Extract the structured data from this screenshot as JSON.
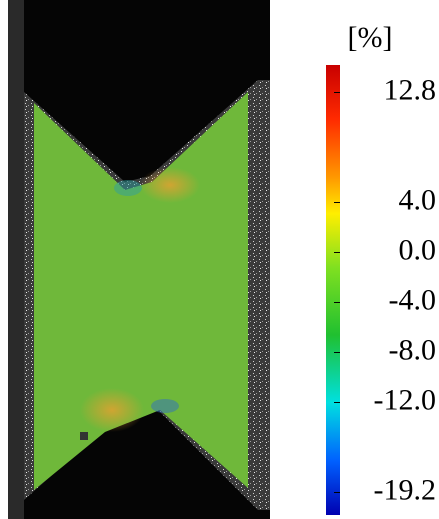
{
  "chart_data": {
    "type": "colorbar",
    "title": "[%]",
    "ylim": [
      -21,
      15
    ],
    "yticks": [
      {
        "value": 12.8,
        "label": "12.8"
      },
      {
        "value": 4,
        "label": "4.0"
      },
      {
        "value": 0,
        "label": "0.0"
      },
      {
        "value": -4,
        "label": "-4.0"
      },
      {
        "value": -8,
        "label": "-8.0"
      },
      {
        "value": -12,
        "label": "-12.0"
      },
      {
        "value": -19.2,
        "label": "-19.2"
      }
    ]
  }
}
